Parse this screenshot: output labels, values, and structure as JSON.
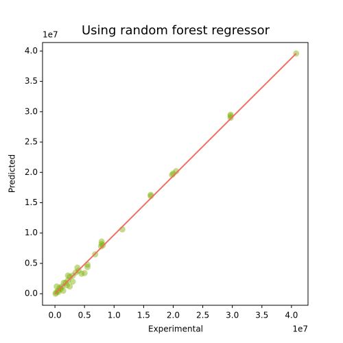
{
  "chart_data": {
    "type": "scatter",
    "title": "Using random forest regressor",
    "xlabel": "Experimental",
    "ylabel": "Predicted",
    "x_offset_label": "1e7",
    "y_offset_label": "1e7",
    "series": [
      {
        "color": "#7cb000",
        "x": [
          4.08,
          2.97,
          2.97,
          2.97,
          2.05,
          2.0,
          1.98,
          1.62,
          1.62,
          1.14,
          0.79,
          0.79,
          0.81,
          0.78,
          0.68,
          0.55,
          0.55,
          0.5,
          0.45,
          0.38,
          0.35,
          0.3,
          0.25,
          0.22,
          0.2,
          0.18,
          0.15,
          0.12,
          0.1,
          0.08,
          0.05,
          0.03,
          0.02,
          0.01,
          0.06,
          0.25,
          0.3,
          0.4,
          0.22,
          0.14
        ],
        "values": [
          3.96,
          2.93,
          2.95,
          2.9,
          2.02,
          1.98,
          1.96,
          1.63,
          1.61,
          1.06,
          0.86,
          0.82,
          0.8,
          0.78,
          0.65,
          0.48,
          0.44,
          0.34,
          0.33,
          0.43,
          0.35,
          0.3,
          0.28,
          0.22,
          0.14,
          0.18,
          0.18,
          0.12,
          0.08,
          0.1,
          0.05,
          0.12,
          0.02,
          0.0,
          0.03,
          0.12,
          0.2,
          0.38,
          0.3,
          0.05
        ]
      }
    ],
    "fit_line": {
      "color": "#ee6e62",
      "x": [
        0,
        4.08
      ],
      "values": [
        0,
        3.96
      ]
    },
    "xlim": [
      -0.21,
      4.28
    ],
    "ylim": [
      -0.19,
      4.14
    ],
    "xticks": [
      {
        "value": 0,
        "label": "0.0"
      },
      0.5,
      {
        "value": 1,
        "label": "1.0"
      },
      1.5,
      {
        "value": 2,
        "label": "2.0"
      },
      2.5,
      {
        "value": 3,
        "label": "3.0"
      },
      3.5,
      {
        "value": 4,
        "label": "4.0"
      }
    ],
    "yticks": [
      {
        "value": 0,
        "label": "0.0"
      },
      0.5,
      {
        "value": 1,
        "label": "1.0"
      },
      1.5,
      {
        "value": 2,
        "label": "2.0"
      },
      2.5,
      {
        "value": 3,
        "label": "3.0"
      },
      3.5,
      {
        "value": 4,
        "label": "4.0"
      }
    ]
  }
}
